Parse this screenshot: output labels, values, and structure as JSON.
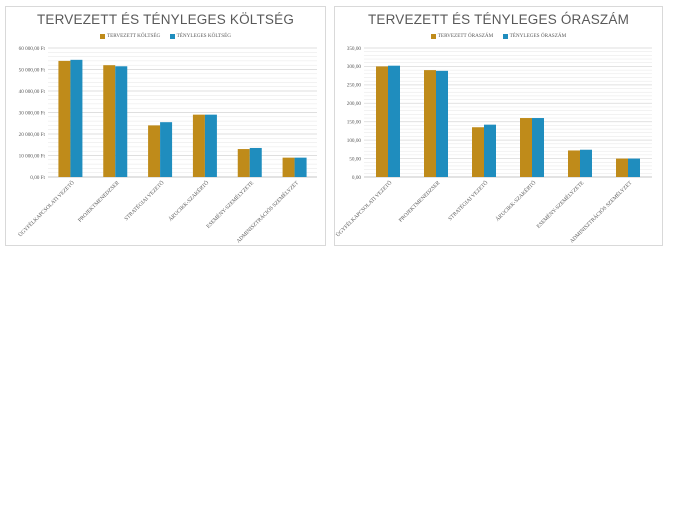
{
  "colors": {
    "planned": "#bf8b1a",
    "actual": "#1f8dbe",
    "grid": "#e6e6e6",
    "axis": "#bfbfbf",
    "text": "#595959"
  },
  "chart_data": [
    {
      "type": "bar",
      "title": "TERVEZETT ÉS TÉNYLEGES KÖLTSÉG",
      "categories": [
        "ÜGYFÉLKAPCSOLATI VEZETŐ",
        "PROJEKTMENEDZSER",
        "STRATÉGIAI VEZETŐ",
        "ÁRUCIKK-SZAKÉRTŐ",
        "ESEMÉNY-SZEMÉLYZETE",
        "ADMINISZTRÁCIÓS SZEMÉLYZET"
      ],
      "series": [
        {
          "name": "TERVEZETT KÖLTSÉG",
          "values": [
            54000,
            52000,
            24000,
            29000,
            13000,
            9000
          ]
        },
        {
          "name": "TÉNYLEGES KÖLTSÉG",
          "values": [
            54500,
            51500,
            25500,
            29000,
            13500,
            9000
          ]
        }
      ],
      "ylim": [
        0,
        60000
      ],
      "yticks": [
        0,
        10000,
        20000,
        30000,
        40000,
        50000,
        60000
      ],
      "ytick_labels": [
        "0,00 Ft",
        "10 000,00 Ft",
        "20 000,00 Ft",
        "30 000,00 Ft",
        "40 000,00 Ft",
        "50 000,00 Ft",
        "60 000,00 Ft"
      ],
      "minor_gridlines": 4,
      "legend_position": "top"
    },
    {
      "type": "bar",
      "title": "TERVEZETT ÉS TÉNYLEGES ÓRASZÁM",
      "categories": [
        "ÜGYFÉLKAPCSOLATI VEZETŐ",
        "PROJEKTMENEDZSER",
        "STRATÉGIAI VEZETŐ",
        "ÁRUCIKK-SZAKÉRTŐ",
        "ESEMÉNY-SZEMÉLYZETE",
        "ADMINISZTRÁCIÓS SZEMÉLYZET"
      ],
      "series": [
        {
          "name": "TERVEZETT ÓRASZÁM",
          "values": [
            300,
            290,
            135,
            160,
            72,
            50
          ]
        },
        {
          "name": "TÉNYLEGES ÓRASZÁM",
          "values": [
            302,
            288,
            142,
            160,
            74,
            50
          ]
        }
      ],
      "ylim": [
        0,
        350
      ],
      "yticks": [
        0,
        50,
        100,
        150,
        200,
        250,
        300,
        350
      ],
      "ytick_labels": [
        "0,00",
        "50,00",
        "100,00",
        "150,00",
        "200,00",
        "250,00",
        "300,00",
        "350,00"
      ],
      "minor_gridlines": 4,
      "legend_position": "top"
    }
  ]
}
